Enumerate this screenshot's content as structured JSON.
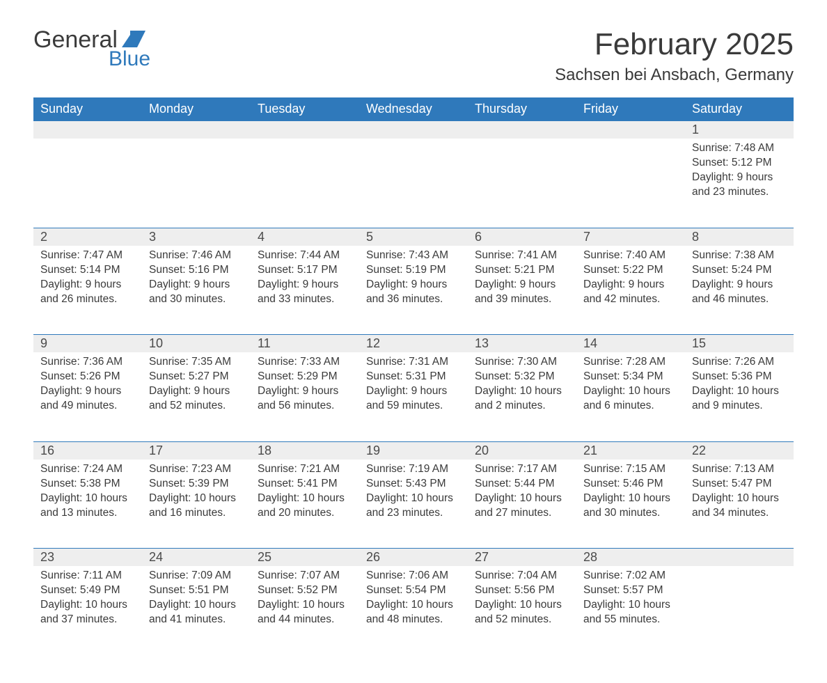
{
  "brand": {
    "word1": "General",
    "word2": "Blue",
    "text_color": "#3b3b3b",
    "accent_color": "#2f79bb"
  },
  "title": {
    "month_year": "February 2025",
    "location": "Sachsen bei Ansbach, Germany",
    "title_fontsize": 44,
    "location_fontsize": 24
  },
  "styling": {
    "header_bg": "#2f79bb",
    "header_text": "#ffffff",
    "daynum_bg": "#eeeeee",
    "row_border": "#2f79bb",
    "body_text": "#3a3a3a",
    "page_bg": "#ffffff",
    "header_fontsize": 18,
    "cell_fontsize": 15.5
  },
  "weekdays": [
    "Sunday",
    "Monday",
    "Tuesday",
    "Wednesday",
    "Thursday",
    "Friday",
    "Saturday"
  ],
  "weeks": [
    [
      null,
      null,
      null,
      null,
      null,
      null,
      {
        "n": "1",
        "sunrise": "Sunrise: 7:48 AM",
        "sunset": "Sunset: 5:12 PM",
        "daylight": "Daylight: 9 hours and 23 minutes."
      }
    ],
    [
      {
        "n": "2",
        "sunrise": "Sunrise: 7:47 AM",
        "sunset": "Sunset: 5:14 PM",
        "daylight": "Daylight: 9 hours and 26 minutes."
      },
      {
        "n": "3",
        "sunrise": "Sunrise: 7:46 AM",
        "sunset": "Sunset: 5:16 PM",
        "daylight": "Daylight: 9 hours and 30 minutes."
      },
      {
        "n": "4",
        "sunrise": "Sunrise: 7:44 AM",
        "sunset": "Sunset: 5:17 PM",
        "daylight": "Daylight: 9 hours and 33 minutes."
      },
      {
        "n": "5",
        "sunrise": "Sunrise: 7:43 AM",
        "sunset": "Sunset: 5:19 PM",
        "daylight": "Daylight: 9 hours and 36 minutes."
      },
      {
        "n": "6",
        "sunrise": "Sunrise: 7:41 AM",
        "sunset": "Sunset: 5:21 PM",
        "daylight": "Daylight: 9 hours and 39 minutes."
      },
      {
        "n": "7",
        "sunrise": "Sunrise: 7:40 AM",
        "sunset": "Sunset: 5:22 PM",
        "daylight": "Daylight: 9 hours and 42 minutes."
      },
      {
        "n": "8",
        "sunrise": "Sunrise: 7:38 AM",
        "sunset": "Sunset: 5:24 PM",
        "daylight": "Daylight: 9 hours and 46 minutes."
      }
    ],
    [
      {
        "n": "9",
        "sunrise": "Sunrise: 7:36 AM",
        "sunset": "Sunset: 5:26 PM",
        "daylight": "Daylight: 9 hours and 49 minutes."
      },
      {
        "n": "10",
        "sunrise": "Sunrise: 7:35 AM",
        "sunset": "Sunset: 5:27 PM",
        "daylight": "Daylight: 9 hours and 52 minutes."
      },
      {
        "n": "11",
        "sunrise": "Sunrise: 7:33 AM",
        "sunset": "Sunset: 5:29 PM",
        "daylight": "Daylight: 9 hours and 56 minutes."
      },
      {
        "n": "12",
        "sunrise": "Sunrise: 7:31 AM",
        "sunset": "Sunset: 5:31 PM",
        "daylight": "Daylight: 9 hours and 59 minutes."
      },
      {
        "n": "13",
        "sunrise": "Sunrise: 7:30 AM",
        "sunset": "Sunset: 5:32 PM",
        "daylight": "Daylight: 10 hours and 2 minutes."
      },
      {
        "n": "14",
        "sunrise": "Sunrise: 7:28 AM",
        "sunset": "Sunset: 5:34 PM",
        "daylight": "Daylight: 10 hours and 6 minutes."
      },
      {
        "n": "15",
        "sunrise": "Sunrise: 7:26 AM",
        "sunset": "Sunset: 5:36 PM",
        "daylight": "Daylight: 10 hours and 9 minutes."
      }
    ],
    [
      {
        "n": "16",
        "sunrise": "Sunrise: 7:24 AM",
        "sunset": "Sunset: 5:38 PM",
        "daylight": "Daylight: 10 hours and 13 minutes."
      },
      {
        "n": "17",
        "sunrise": "Sunrise: 7:23 AM",
        "sunset": "Sunset: 5:39 PM",
        "daylight": "Daylight: 10 hours and 16 minutes."
      },
      {
        "n": "18",
        "sunrise": "Sunrise: 7:21 AM",
        "sunset": "Sunset: 5:41 PM",
        "daylight": "Daylight: 10 hours and 20 minutes."
      },
      {
        "n": "19",
        "sunrise": "Sunrise: 7:19 AM",
        "sunset": "Sunset: 5:43 PM",
        "daylight": "Daylight: 10 hours and 23 minutes."
      },
      {
        "n": "20",
        "sunrise": "Sunrise: 7:17 AM",
        "sunset": "Sunset: 5:44 PM",
        "daylight": "Daylight: 10 hours and 27 minutes."
      },
      {
        "n": "21",
        "sunrise": "Sunrise: 7:15 AM",
        "sunset": "Sunset: 5:46 PM",
        "daylight": "Daylight: 10 hours and 30 minutes."
      },
      {
        "n": "22",
        "sunrise": "Sunrise: 7:13 AM",
        "sunset": "Sunset: 5:47 PM",
        "daylight": "Daylight: 10 hours and 34 minutes."
      }
    ],
    [
      {
        "n": "23",
        "sunrise": "Sunrise: 7:11 AM",
        "sunset": "Sunset: 5:49 PM",
        "daylight": "Daylight: 10 hours and 37 minutes."
      },
      {
        "n": "24",
        "sunrise": "Sunrise: 7:09 AM",
        "sunset": "Sunset: 5:51 PM",
        "daylight": "Daylight: 10 hours and 41 minutes."
      },
      {
        "n": "25",
        "sunrise": "Sunrise: 7:07 AM",
        "sunset": "Sunset: 5:52 PM",
        "daylight": "Daylight: 10 hours and 44 minutes."
      },
      {
        "n": "26",
        "sunrise": "Sunrise: 7:06 AM",
        "sunset": "Sunset: 5:54 PM",
        "daylight": "Daylight: 10 hours and 48 minutes."
      },
      {
        "n": "27",
        "sunrise": "Sunrise: 7:04 AM",
        "sunset": "Sunset: 5:56 PM",
        "daylight": "Daylight: 10 hours and 52 minutes."
      },
      {
        "n": "28",
        "sunrise": "Sunrise: 7:02 AM",
        "sunset": "Sunset: 5:57 PM",
        "daylight": "Daylight: 10 hours and 55 minutes."
      },
      null
    ]
  ]
}
